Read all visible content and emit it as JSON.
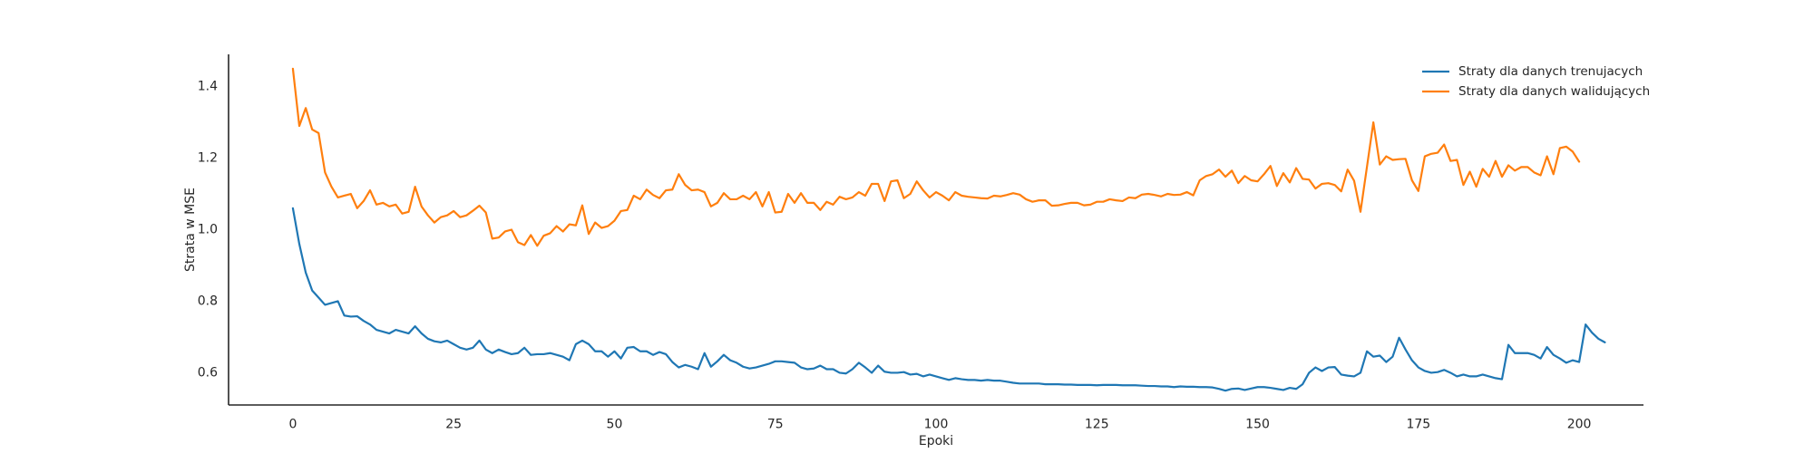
{
  "chart_data": {
    "type": "line",
    "title": "",
    "xlabel": "Epoki",
    "ylabel": "Strata w MSE",
    "xlim": [
      -10,
      210
    ],
    "ylim": [
      0.51,
      1.49
    ],
    "xticks": [
      0,
      25,
      50,
      75,
      100,
      125,
      150,
      175,
      200
    ],
    "yticks": [
      0.6,
      0.8,
      1.0,
      1.2,
      1.4
    ],
    "ytick_labels": [
      "0.6",
      "0.8",
      "1.0",
      "1.2",
      "1.4"
    ],
    "grid": false,
    "legend": "top-right",
    "x_start": 0,
    "series": [
      {
        "name": "Straty dla danych trenujacych",
        "color": "#1f77b4",
        "values": [
          1.06,
          0.96,
          0.88,
          0.83,
          0.81,
          0.79,
          0.795,
          0.8,
          0.76,
          0.757,
          0.758,
          0.745,
          0.735,
          0.72,
          0.715,
          0.71,
          0.72,
          0.715,
          0.71,
          0.73,
          0.71,
          0.695,
          0.688,
          0.685,
          0.69,
          0.68,
          0.67,
          0.665,
          0.67,
          0.69,
          0.665,
          0.655,
          0.665,
          0.658,
          0.652,
          0.655,
          0.67,
          0.65,
          0.652,
          0.652,
          0.655,
          0.65,
          0.645,
          0.635,
          0.68,
          0.69,
          0.68,
          0.66,
          0.66,
          0.645,
          0.66,
          0.64,
          0.67,
          0.672,
          0.66,
          0.66,
          0.65,
          0.658,
          0.652,
          0.63,
          0.615,
          0.622,
          0.617,
          0.61,
          0.655,
          0.617,
          0.632,
          0.65,
          0.635,
          0.628,
          0.617,
          0.612,
          0.615,
          0.62,
          0.625,
          0.632,
          0.632,
          0.63,
          0.628,
          0.615,
          0.61,
          0.612,
          0.62,
          0.61,
          0.61,
          0.6,
          0.598,
          0.61,
          0.628,
          0.615,
          0.6,
          0.62,
          0.603,
          0.6,
          0.6,
          0.602,
          0.595,
          0.597,
          0.59,
          0.595,
          0.59,
          0.585,
          0.58,
          0.585,
          0.582,
          0.58,
          0.58,
          0.578,
          0.58,
          0.578,
          0.578,
          0.575,
          0.572,
          0.57,
          0.57,
          0.57,
          0.57,
          0.568,
          0.568,
          0.568,
          0.567,
          0.567,
          0.566,
          0.566,
          0.566,
          0.565,
          0.566,
          0.566,
          0.566,
          0.565,
          0.565,
          0.565,
          0.564,
          0.563,
          0.563,
          0.562,
          0.562,
          0.56,
          0.562,
          0.561,
          0.561,
          0.56,
          0.56,
          0.559,
          0.555,
          0.55,
          0.555,
          0.556,
          0.552,
          0.556,
          0.56,
          0.56,
          0.558,
          0.555,
          0.552,
          0.558,
          0.555,
          0.568,
          0.6,
          0.615,
          0.605,
          0.615,
          0.616,
          0.595,
          0.592,
          0.59,
          0.6,
          0.66,
          0.645,
          0.648,
          0.63,
          0.645,
          0.698,
          0.665,
          0.635,
          0.615,
          0.605,
          0.6,
          0.602,
          0.608,
          0.6,
          0.59,
          0.595,
          0.59,
          0.59,
          0.595,
          0.59,
          0.585,
          0.582,
          0.678,
          0.655,
          0.655,
          0.655,
          0.65,
          0.64,
          0.672,
          0.65,
          0.64,
          0.628,
          0.635,
          0.63,
          0.735,
          0.712,
          0.695,
          0.685
        ]
      },
      {
        "name": "Straty dla danych walidujących",
        "color": "#ff7f0e",
        "values": [
          1.45,
          1.29,
          1.34,
          1.28,
          1.27,
          1.16,
          1.12,
          1.09,
          1.095,
          1.1,
          1.06,
          1.08,
          1.11,
          1.07,
          1.075,
          1.065,
          1.07,
          1.045,
          1.05,
          1.12,
          1.065,
          1.04,
          1.02,
          1.035,
          1.04,
          1.052,
          1.035,
          1.04,
          1.053,
          1.067,
          1.048,
          0.975,
          0.978,
          0.995,
          1.0,
          0.965,
          0.957,
          0.985,
          0.955,
          0.983,
          0.99,
          1.01,
          0.995,
          1.015,
          1.012,
          1.068,
          0.988,
          1.02,
          1.005,
          1.01,
          1.025,
          1.052,
          1.055,
          1.095,
          1.085,
          1.112,
          1.097,
          1.088,
          1.11,
          1.112,
          1.155,
          1.125,
          1.11,
          1.112,
          1.105,
          1.065,
          1.075,
          1.102,
          1.085,
          1.085,
          1.095,
          1.085,
          1.105,
          1.065,
          1.105,
          1.048,
          1.05,
          1.1,
          1.075,
          1.102,
          1.075,
          1.075,
          1.055,
          1.078,
          1.07,
          1.092,
          1.085,
          1.09,
          1.105,
          1.095,
          1.128,
          1.128,
          1.08,
          1.135,
          1.138,
          1.088,
          1.1,
          1.135,
          1.11,
          1.09,
          1.105,
          1.095,
          1.082,
          1.105,
          1.095,
          1.092,
          1.09,
          1.088,
          1.087,
          1.095,
          1.093,
          1.097,
          1.102,
          1.098,
          1.085,
          1.078,
          1.082,
          1.082,
          1.067,
          1.068,
          1.072,
          1.075,
          1.075,
          1.068,
          1.07,
          1.078,
          1.078,
          1.085,
          1.082,
          1.08,
          1.09,
          1.088,
          1.098,
          1.1,
          1.097,
          1.093,
          1.1,
          1.097,
          1.098,
          1.105,
          1.096,
          1.138,
          1.15,
          1.155,
          1.168,
          1.148,
          1.165,
          1.13,
          1.15,
          1.138,
          1.135,
          1.155,
          1.178,
          1.122,
          1.158,
          1.132,
          1.172,
          1.142,
          1.14,
          1.115,
          1.128,
          1.13,
          1.125,
          1.107,
          1.168,
          1.137,
          1.05,
          1.175,
          1.3,
          1.182,
          1.205,
          1.195,
          1.197,
          1.198,
          1.138,
          1.108,
          1.205,
          1.212,
          1.215,
          1.238,
          1.192,
          1.195,
          1.125,
          1.162,
          1.12,
          1.17,
          1.148,
          1.192,
          1.148,
          1.18,
          1.165,
          1.175,
          1.175,
          1.16,
          1.152,
          1.205,
          1.155,
          1.228,
          1.232,
          1.218,
          1.19
        ]
      }
    ]
  }
}
